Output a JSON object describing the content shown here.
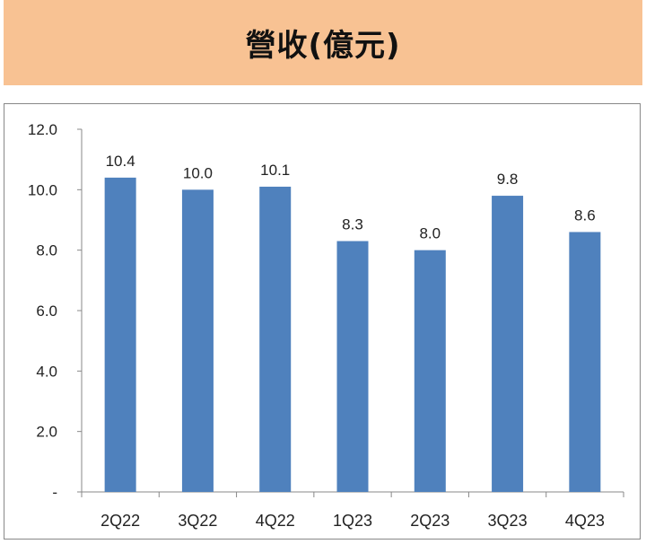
{
  "chart_data": {
    "type": "bar",
    "title": "營收(億元)",
    "xlabel": "",
    "ylabel": "",
    "categories": [
      "2Q22",
      "3Q22",
      "4Q22",
      "1Q23",
      "2Q23",
      "3Q23",
      "4Q23"
    ],
    "values": [
      10.4,
      10.0,
      10.1,
      8.3,
      8.0,
      9.8,
      8.6
    ],
    "data_labels": [
      "10.4",
      "10.0",
      "10.1",
      "8.3",
      "8.0",
      "9.8",
      "8.6"
    ],
    "ylim": [
      0,
      12
    ],
    "yticks": [
      0,
      2,
      4,
      6,
      8,
      10,
      12
    ],
    "ytick_labels": [
      "-",
      "2.0",
      "4.0",
      "6.0",
      "8.0",
      "10.0",
      "12.0"
    ],
    "grid": false,
    "legend": "none",
    "colors": {
      "bar": "#4F81BD",
      "header_background": "#F8C293"
    }
  }
}
